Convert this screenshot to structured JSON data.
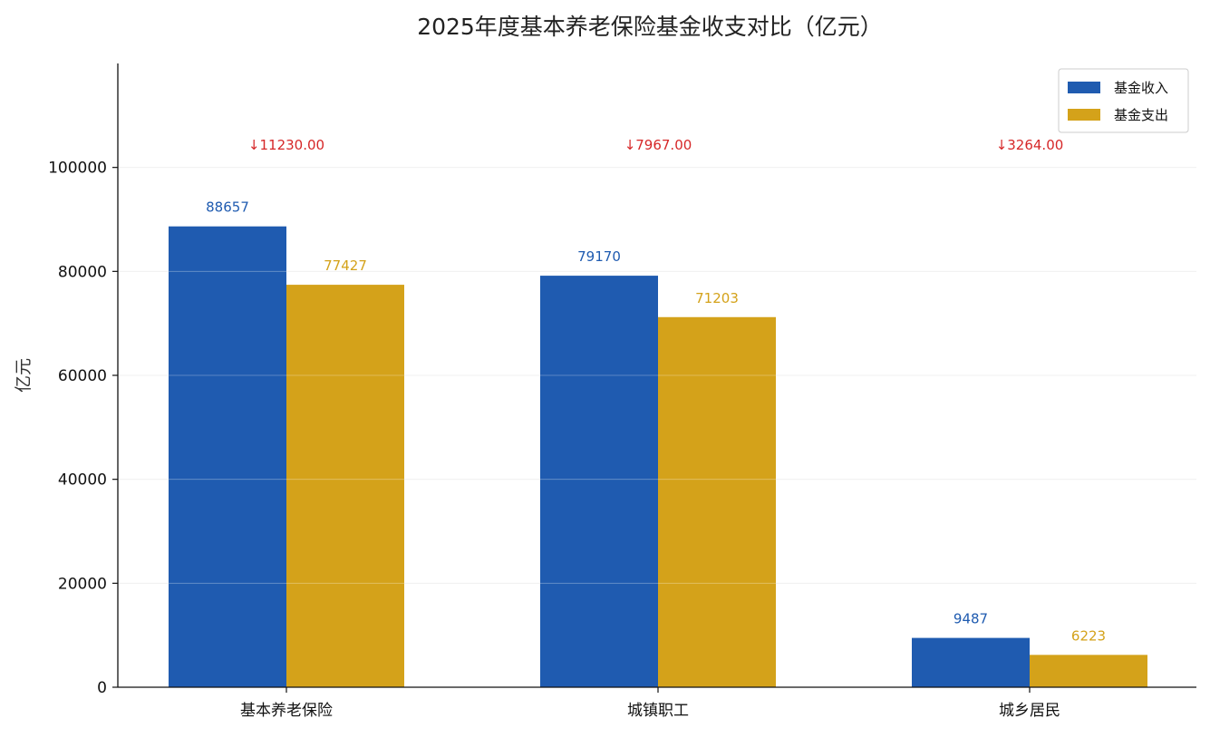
{
  "chart_data": {
    "type": "bar",
    "title": "2025年度基本养老保险基金收支对比（亿元）",
    "xlabel": "",
    "ylabel": "亿元",
    "categories": [
      "基本养老保险",
      "城镇职工",
      "城乡居民"
    ],
    "series": [
      {
        "name": "基金收入",
        "values": [
          88657,
          79170,
          9487
        ],
        "color": "#1f5bb0"
      },
      {
        "name": "基金支出",
        "values": [
          77427,
          71203,
          6223
        ],
        "color": "#d4a21a"
      }
    ],
    "annotations": [
      "↓11230.00",
      "↓7967.00",
      "↓3264.00"
    ],
    "annotation_color": "#d62728",
    "ylim": [
      0,
      120000
    ],
    "yticks": [
      0,
      20000,
      40000,
      60000,
      80000,
      100000
    ],
    "grid": true,
    "legend_position": "top-right"
  }
}
